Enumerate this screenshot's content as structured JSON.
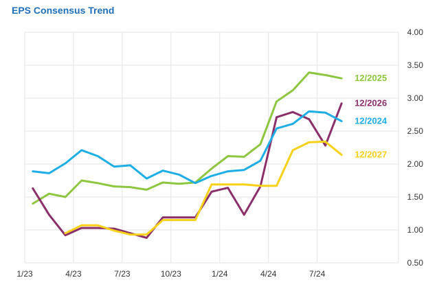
{
  "chart_data": {
    "type": "line",
    "title": "EPS Consensus Trend",
    "xlabel": "",
    "ylabel": "",
    "x_tick_labels": [
      "1/23",
      "4/23",
      "7/23",
      "10/23",
      "1/24",
      "4/24",
      "7/24"
    ],
    "x_tick_months": [
      0,
      3,
      6,
      9,
      12,
      15,
      18
    ],
    "xlim": [
      0,
      23
    ],
    "ylim": [
      0.5,
      4.0
    ],
    "y_ticks": [
      "0.50",
      "1.00",
      "1.50",
      "2.00",
      "2.50",
      "3.00",
      "3.50",
      "4.00"
    ],
    "grid": true,
    "legend": "inline labels at right end of series",
    "series": [
      {
        "name": "12/2025",
        "color": "#8dc63f",
        "x": [
          0.5,
          1.5,
          2.5,
          3.5,
          4.5,
          5.5,
          6.5,
          7.5,
          8.5,
          9.5,
          10.5,
          11.5,
          12.5,
          13.5,
          14.5,
          15.5,
          16.5,
          17.5,
          18.5,
          19.5
        ],
        "y": [
          1.4,
          1.55,
          1.5,
          1.75,
          1.71,
          1.66,
          1.65,
          1.61,
          1.72,
          1.7,
          1.72,
          1.93,
          2.12,
          2.11,
          2.3,
          2.95,
          3.12,
          3.39,
          3.35,
          3.3
        ]
      },
      {
        "name": "12/2026",
        "color": "#8b2f6b",
        "x": [
          0.5,
          1.5,
          2.5,
          3.5,
          4.5,
          5.5,
          6.5,
          7.5,
          8.5,
          9.5,
          10.5,
          11.5,
          12.5,
          13.5,
          14.5,
          15.5,
          16.5,
          17.5,
          18.5,
          19.5
        ],
        "y": [
          1.63,
          1.23,
          0.92,
          1.03,
          1.03,
          1.02,
          0.95,
          0.88,
          1.19,
          1.19,
          1.19,
          1.58,
          1.64,
          1.23,
          1.66,
          2.71,
          2.79,
          2.68,
          2.28,
          2.92
        ]
      },
      {
        "name": "12/2024",
        "color": "#1eaee6",
        "x": [
          0.5,
          1.5,
          2.5,
          3.5,
          4.5,
          5.5,
          6.5,
          7.5,
          8.5,
          9.5,
          10.5,
          11.5,
          12.5,
          13.5,
          14.5,
          15.5,
          16.5,
          17.5,
          18.5,
          19.5
        ],
        "y": [
          1.89,
          1.86,
          2.01,
          2.21,
          2.12,
          1.96,
          1.98,
          1.78,
          1.9,
          1.84,
          1.71,
          1.82,
          1.89,
          1.91,
          2.05,
          2.54,
          2.61,
          2.8,
          2.78,
          2.65
        ]
      },
      {
        "name": "12/2027",
        "color": "#f7d117",
        "x": [
          2.5,
          3.5,
          4.5,
          5.5,
          6.5,
          7.5,
          8.5,
          9.5,
          10.5,
          11.5,
          12.5,
          13.5,
          14.5,
          15.5,
          16.5,
          17.5,
          18.5,
          19.5
        ],
        "y": [
          0.95,
          1.07,
          1.07,
          0.99,
          0.93,
          0.93,
          1.15,
          1.15,
          1.15,
          1.69,
          1.69,
          1.69,
          1.67,
          1.67,
          2.21,
          2.33,
          2.34,
          2.14
        ]
      }
    ]
  }
}
